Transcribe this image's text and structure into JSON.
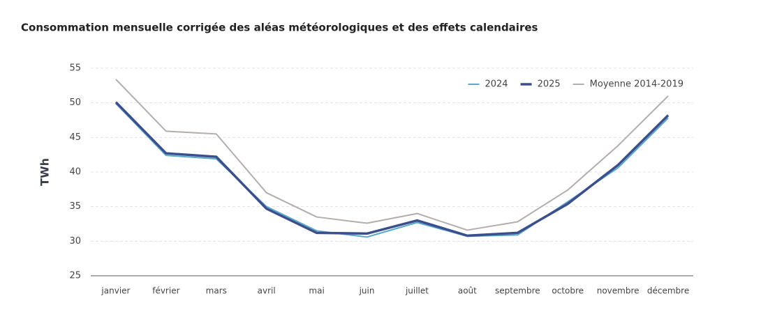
{
  "chart_data": {
    "type": "line",
    "title": "Consommation mensuelle corrigée des aléas météorologiques et des effets calendaires",
    "y_label": "TWh",
    "categories": [
      "janvier",
      "février",
      "mars",
      "avril",
      "mai",
      "juin",
      "juillet",
      "août",
      "septembre",
      "octobre",
      "novembre",
      "décembre"
    ],
    "series": [
      {
        "name": "2024",
        "color": "#5aa9c9",
        "width": 2,
        "values": [
          49.9,
          42.4,
          41.9,
          35.0,
          31.5,
          30.6,
          32.7,
          30.7,
          30.9,
          35.7,
          40.6,
          47.8
        ]
      },
      {
        "name": "2025",
        "color": "#3b4f8e",
        "width": 3.5,
        "values": [
          50.1,
          42.7,
          42.2,
          34.7,
          31.2,
          31.1,
          33.0,
          30.8,
          31.2,
          35.4,
          41.0,
          48.2
        ]
      },
      {
        "name": "Moyenne 2014-2019",
        "color": "#b3adab",
        "width": 2,
        "values": [
          53.4,
          45.9,
          45.5,
          37.0,
          33.5,
          32.6,
          34.0,
          31.6,
          32.8,
          37.4,
          43.8,
          51.0
        ]
      }
    ],
    "ylim": [
      25,
      55
    ],
    "yticks": [
      25,
      30,
      35,
      40,
      45,
      50,
      55
    ],
    "grid": true,
    "legend": "top-right"
  }
}
